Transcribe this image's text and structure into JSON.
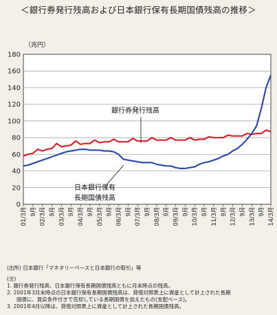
{
  "title": "＜銀行券発行残高および日本銀行保有長期国債残高の推移＞",
  "source": "(出所) 日本銀行「マネタリーベースと日本銀行の取引」等",
  "notes_header": "(注)",
  "notes": [
    "1. 銀行券発行残高、日本銀行保有長期国債残高ともに月末時点の残高。",
    "2. 2001年3月末時点の日本銀行保有長期国債残高は、貸借対照表上に資産として計上された長期",
    "国債に、買戻条件付きで売却している長期国債を加えたもの(支配ベース)。",
    "3. 2001年4月以降は、貸借対照表上に資産として計上された長期国債残高。"
  ],
  "colors": {
    "banknotes": "#d6232f",
    "jgb": "#2f4aa8",
    "grid": "#9a9a9a"
  },
  "chart_data": {
    "type": "line",
    "unit_label": "（兆円）",
    "ylim": [
      0,
      180
    ],
    "yticks": [
      0,
      20,
      40,
      60,
      80,
      100,
      120,
      140,
      160,
      180
    ],
    "grid": true,
    "x_ticks": [
      "01/3月",
      "9月",
      "02/3月",
      "9月",
      "03/3月",
      "9月",
      "04/3月",
      "9月",
      "05/3月",
      "9月",
      "06/3月",
      "9月",
      "07/3月",
      "9月",
      "08/3月",
      "9月",
      "09/3月",
      "9月",
      "10/3月",
      "9月",
      "11/3月",
      "9月",
      "12/3月",
      "9月",
      "13/3月",
      "9月",
      "14/3月"
    ],
    "x_range": [
      "2001-03",
      "2014-03"
    ],
    "series": [
      {
        "name": "銀行券発行残高",
        "key": "banknotes",
        "x": [
          "2001-03",
          "2001-06",
          "2001-09",
          "2001-12",
          "2002-03",
          "2002-06",
          "2002-09",
          "2002-12",
          "2003-03",
          "2003-06",
          "2003-09",
          "2003-12",
          "2004-03",
          "2004-06",
          "2004-09",
          "2004-12",
          "2005-03",
          "2005-06",
          "2005-09",
          "2005-12",
          "2006-03",
          "2006-06",
          "2006-09",
          "2006-12",
          "2007-03",
          "2007-06",
          "2007-09",
          "2007-12",
          "2008-03",
          "2008-06",
          "2008-09",
          "2008-12",
          "2009-03",
          "2009-06",
          "2009-09",
          "2009-12",
          "2010-03",
          "2010-06",
          "2010-09",
          "2010-12",
          "2011-03",
          "2011-06",
          "2011-09",
          "2011-12",
          "2012-03",
          "2012-06",
          "2012-09",
          "2012-12",
          "2013-03",
          "2013-06",
          "2013-09",
          "2013-12",
          "2014-03"
        ],
        "values": [
          58,
          60,
          61,
          66,
          64,
          66,
          67,
          73,
          69,
          70,
          71,
          76,
          72,
          73,
          73,
          77,
          74,
          75,
          75,
          78,
          75,
          75,
          75,
          79,
          76,
          76,
          76,
          80,
          77,
          77,
          77,
          80,
          77,
          77,
          77,
          80,
          77,
          78,
          78,
          81,
          80,
          80,
          80,
          83,
          82,
          82,
          82,
          85,
          84,
          85,
          85,
          89,
          87
        ]
      },
      {
        "name": "日本銀行保有長期国債残高",
        "key": "jgb",
        "x": [
          "2001-03",
          "2001-06",
          "2001-09",
          "2001-12",
          "2002-03",
          "2002-06",
          "2002-09",
          "2002-12",
          "2003-03",
          "2003-06",
          "2003-09",
          "2003-12",
          "2004-03",
          "2004-06",
          "2004-09",
          "2004-12",
          "2005-03",
          "2005-06",
          "2005-09",
          "2005-12",
          "2006-03",
          "2006-06",
          "2006-09",
          "2006-12",
          "2007-03",
          "2007-06",
          "2007-09",
          "2007-12",
          "2008-03",
          "2008-06",
          "2008-09",
          "2008-12",
          "2009-03",
          "2009-06",
          "2009-09",
          "2009-12",
          "2010-03",
          "2010-06",
          "2010-09",
          "2010-12",
          "2011-03",
          "2011-06",
          "2011-09",
          "2011-12",
          "2012-03",
          "2012-06",
          "2012-09",
          "2012-12",
          "2013-03",
          "2013-06",
          "2013-09",
          "2013-12",
          "2014-03"
        ],
        "values": [
          46,
          47,
          49,
          51,
          53,
          55,
          57,
          59,
          61,
          63,
          64,
          65,
          66,
          66,
          65,
          65,
          65,
          64,
          64,
          63,
          60,
          54,
          53,
          52,
          51,
          50,
          50,
          50,
          48,
          47,
          46,
          46,
          44,
          43,
          43,
          44,
          45,
          48,
          50,
          51,
          53,
          55,
          58,
          60,
          64,
          67,
          72,
          78,
          85,
          94,
          115,
          140,
          155
        ]
      }
    ],
    "annotations": [
      {
        "text": "銀行券発行残高",
        "series": "banknotes"
      },
      {
        "text": "日本銀行保有",
        "series": "jgb"
      },
      {
        "text": "長期国債残高",
        "series": "jgb"
      }
    ]
  }
}
